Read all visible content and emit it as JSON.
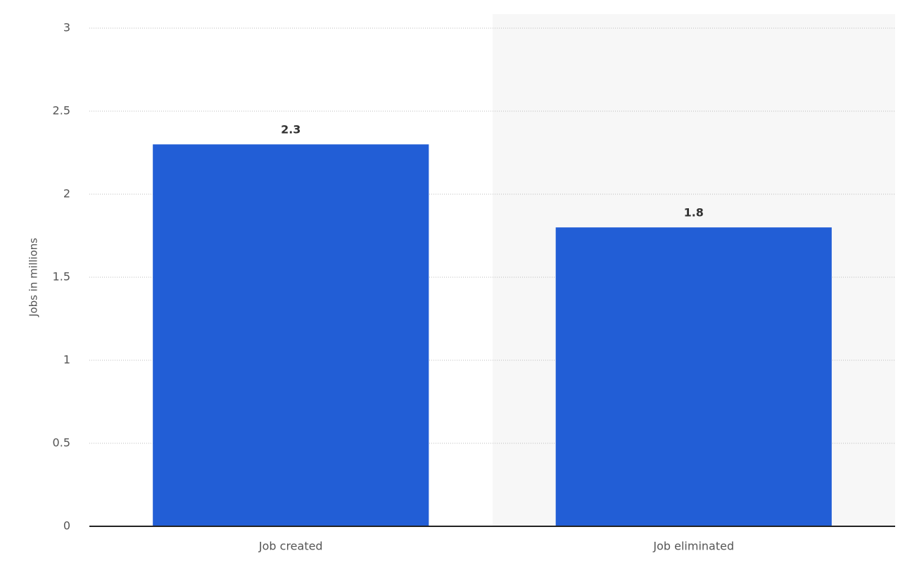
{
  "chart_data": {
    "type": "bar",
    "y_label": "Jobs in millions",
    "categories": [
      "Job created",
      "Job eliminated"
    ],
    "values": [
      2.3,
      1.8
    ],
    "color": "#225ed6",
    "ylim": [
      0,
      3
    ],
    "yticks": [
      0,
      0.5,
      1,
      1.5,
      2,
      2.5,
      3
    ],
    "grid": true
  }
}
